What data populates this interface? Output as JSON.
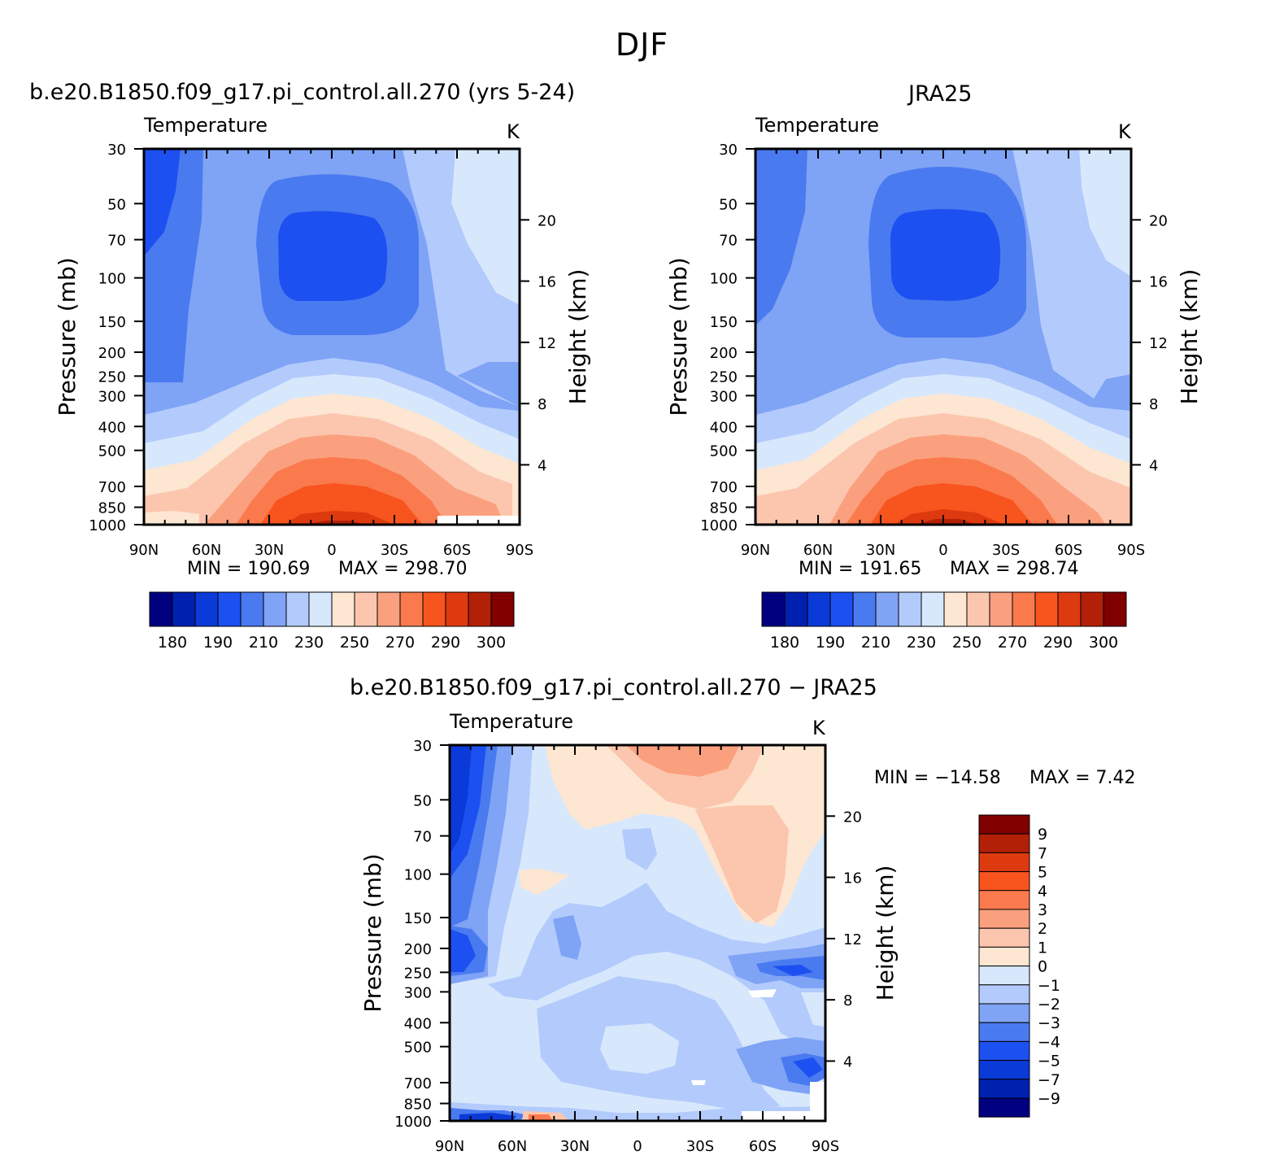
{
  "figure": {
    "title": "DJF"
  },
  "chart_data": [
    {
      "type": "heatmap",
      "title": "b.e20.B1850.f09_g17.pi_control.all.270 (yrs 5-24)",
      "subtitle_left": "Temperature",
      "units": "K",
      "xlabel": "",
      "ylabel": "Pressure (mb)",
      "ylabel_right": "Height (km)",
      "x_ticks": [
        "90N",
        "60N",
        "30N",
        "0",
        "30S",
        "60S",
        "90S"
      ],
      "y_ticks": [
        "30",
        "50",
        "70",
        "100",
        "150",
        "200",
        "250",
        "300",
        "400",
        "500",
        "700",
        "850",
        "1000"
      ],
      "y2_ticks": [
        "20",
        "16",
        "12",
        "8",
        "4"
      ],
      "min_text": "MIN = 190.69",
      "max_text": "MAX = 298.70",
      "min": 190.69,
      "max": 298.7,
      "colorbar_labels": [
        "180",
        "190",
        "210",
        "230",
        "250",
        "270",
        "290",
        "300"
      ]
    },
    {
      "type": "heatmap",
      "title": "JRA25",
      "subtitle_left": "Temperature",
      "units": "K",
      "xlabel": "",
      "ylabel": "Pressure (mb)",
      "ylabel_right": "Height (km)",
      "x_ticks": [
        "90N",
        "60N",
        "30N",
        "0",
        "30S",
        "60S",
        "90S"
      ],
      "y_ticks": [
        "30",
        "50",
        "70",
        "100",
        "150",
        "200",
        "250",
        "300",
        "400",
        "500",
        "700",
        "850",
        "1000"
      ],
      "y2_ticks": [
        "20",
        "16",
        "12",
        "8",
        "4"
      ],
      "min_text": "MIN = 191.65",
      "max_text": "MAX = 298.74",
      "min": 191.65,
      "max": 298.74,
      "colorbar_labels": [
        "180",
        "190",
        "210",
        "230",
        "250",
        "270",
        "290",
        "300"
      ]
    },
    {
      "type": "heatmap",
      "title": "b.e20.B1850.f09_g17.pi_control.all.270 − JRA25",
      "subtitle_left": "Temperature",
      "units": "K",
      "xlabel": "",
      "ylabel": "Pressure (mb)",
      "ylabel_right": "Height (km)",
      "x_ticks": [
        "90N",
        "60N",
        "30N",
        "0",
        "30S",
        "60S",
        "90S"
      ],
      "y_ticks": [
        "30",
        "50",
        "70",
        "100",
        "150",
        "200",
        "250",
        "300",
        "400",
        "500",
        "700",
        "850",
        "1000"
      ],
      "y2_ticks": [
        "20",
        "16",
        "12",
        "8",
        "4"
      ],
      "min_text": "MIN = −14.58",
      "max_text": "MAX = 7.42",
      "min": -14.58,
      "max": 7.42,
      "colorbar_labels": [
        "9",
        "7",
        "5",
        "4",
        "3",
        "2",
        "1",
        "0",
        "−1",
        "−2",
        "−3",
        "−4",
        "−5",
        "−7",
        "−9"
      ]
    }
  ],
  "colors": {
    "abs_scale": [
      "#000080",
      "#0020b0",
      "#0a3ad8",
      "#1d50f0",
      "#4a7af0",
      "#7fa3f5",
      "#b3cbfc",
      "#d8e8fc",
      "#fde6d2",
      "#fcc6ae",
      "#fba07e",
      "#fa7a4e",
      "#f8541e",
      "#de3a10",
      "#b32008",
      "#800000"
    ],
    "diff_scale": [
      "#800000",
      "#b32008",
      "#de3a10",
      "#f8541e",
      "#fa7a4e",
      "#fba07e",
      "#fcc6ae",
      "#fde6d2",
      "#d8e8fc",
      "#b3cbfc",
      "#7fa3f5",
      "#4a7af0",
      "#1d50f0",
      "#0a3ad8",
      "#0020b0",
      "#000080"
    ]
  }
}
